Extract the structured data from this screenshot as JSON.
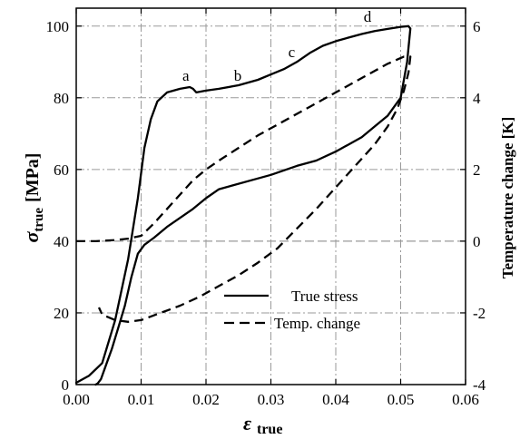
{
  "chart_data": {
    "type": "line",
    "xlabel": "ε",
    "xlabel_sub": "true",
    "ylabel_left": "σ",
    "ylabel_left_sub": "true",
    "ylabel_left_unit": "[MPa]",
    "ylabel_right": "Temperature change [K]",
    "xlim": [
      0,
      0.06
    ],
    "ylim_left": [
      0,
      105
    ],
    "ylim_right": [
      -4,
      6.5
    ],
    "x_ticks": [
      "0.00",
      "0.01",
      "0.02",
      "0.03",
      "0.04",
      "0.05",
      "0.06"
    ],
    "y_left_ticks": [
      "0",
      "20",
      "40",
      "60",
      "80",
      "100"
    ],
    "y_right_ticks": [
      "-4",
      "-2",
      "0",
      "2",
      "4",
      "6"
    ],
    "grid": "dash-dot",
    "legend_position": "bottom-center",
    "series": [
      {
        "name": "True stress",
        "axis": "left",
        "style": "solid",
        "x": [
          0.0,
          0.002,
          0.004,
          0.006,
          0.008,
          0.0095,
          0.0105,
          0.0115,
          0.0125,
          0.014,
          0.016,
          0.0175,
          0.018,
          0.0185,
          0.02,
          0.022,
          0.025,
          0.028,
          0.03,
          0.032,
          0.034,
          0.036,
          0.038,
          0.04,
          0.042,
          0.044,
          0.046,
          0.048,
          0.05,
          0.0512,
          0.0515,
          0.051,
          0.05,
          0.048,
          0.046,
          0.044,
          0.042,
          0.04,
          0.037,
          0.034,
          0.03,
          0.027,
          0.024,
          0.022,
          0.02,
          0.018,
          0.016,
          0.014,
          0.012,
          0.0105,
          0.0095,
          0.0085,
          0.0075,
          0.0065,
          0.0055,
          0.0045,
          0.0038,
          0.0033,
          0.003
        ],
        "y": [
          0.5,
          2.5,
          6,
          18,
          35,
          52,
          66,
          74,
          79,
          81.5,
          82.5,
          83,
          82.5,
          81.5,
          82,
          82.5,
          83.5,
          85,
          86.5,
          88,
          90,
          92.5,
          94.5,
          95.8,
          96.8,
          97.8,
          98.6,
          99.2,
          99.8,
          100,
          99.3,
          90,
          80,
          75,
          72,
          69,
          67,
          65,
          62.5,
          61,
          58.5,
          57,
          55.5,
          54.5,
          52,
          49,
          46.5,
          44,
          41,
          39,
          36.5,
          30,
          22,
          16,
          10,
          5,
          1.5,
          0.3,
          0
        ]
      },
      {
        "name": "Temp. change",
        "axis": "right",
        "style": "dashed",
        "x": [
          0.0,
          0.003,
          0.006,
          0.008,
          0.01,
          0.012,
          0.014,
          0.016,
          0.018,
          0.02,
          0.022,
          0.025,
          0.028,
          0.03,
          0.033,
          0.036,
          0.039,
          0.042,
          0.045,
          0.048,
          0.0505,
          0.0515,
          0.0512,
          0.0505,
          0.0495,
          0.048,
          0.046,
          0.043,
          0.04,
          0.037,
          0.034,
          0.031,
          0.028,
          0.025,
          0.022,
          0.019,
          0.016,
          0.013,
          0.01,
          0.008,
          0.006,
          0.004,
          0.0035
        ],
        "y": [
          0.0,
          0.0,
          0.03,
          0.07,
          0.15,
          0.5,
          0.9,
          1.3,
          1.7,
          2.0,
          2.25,
          2.6,
          2.95,
          3.15,
          3.45,
          3.75,
          4.05,
          4.35,
          4.65,
          4.95,
          5.15,
          5.15,
          4.7,
          4.2,
          3.7,
          3.2,
          2.7,
          2.1,
          1.5,
          0.9,
          0.35,
          -0.2,
          -0.6,
          -0.95,
          -1.25,
          -1.55,
          -1.8,
          -2.0,
          -2.2,
          -2.25,
          -2.2,
          -2.05,
          -1.85
        ]
      }
    ],
    "annotations": [
      {
        "text": "a",
        "x": 0.0169,
        "y": 84.7
      },
      {
        "text": "b",
        "x": 0.0249,
        "y": 84.7
      },
      {
        "text": "c",
        "x": 0.0332,
        "y": 91.4
      },
      {
        "text": "d",
        "x": 0.0449,
        "y": 101.2
      }
    ],
    "legend": {
      "items": [
        {
          "label": "True stress",
          "style": "solid"
        },
        {
          "label": "Temp. change",
          "style": "dashed"
        }
      ]
    }
  }
}
